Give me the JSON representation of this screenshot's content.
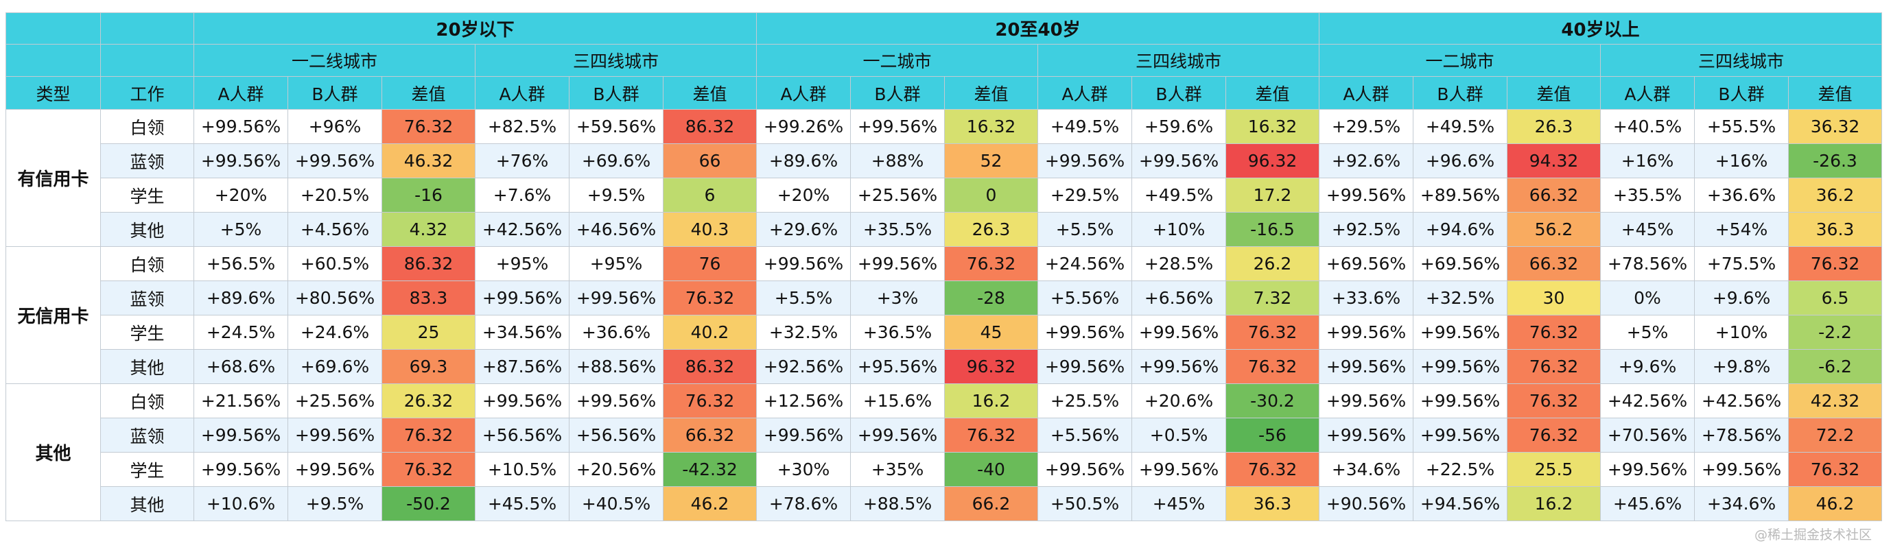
{
  "header": {
    "age_groups": [
      "20岁以下",
      "20至40岁",
      "40岁以上"
    ],
    "city_tiers": [
      "一二线城市",
      "三四线城市",
      "一二城市",
      "三四线城市",
      "一二城市",
      "三四线城市"
    ],
    "type_label": "类型",
    "job_label": "工作",
    "col_labels": [
      "A人群",
      "B人群",
      "差值"
    ]
  },
  "rows": [
    {
      "type": "有信用卡",
      "job": "白领",
      "cells": [
        "+99.56%",
        "+96%",
        "76.32",
        "+82.5%",
        "+59.56%",
        "86.32",
        "+99.26%",
        "+99.56%",
        "16.32",
        "+49.5%",
        "+59.6%",
        "16.32",
        "+29.5%",
        "+49.5%",
        "26.3",
        "+40.5%",
        "+55.5%",
        "36.32"
      ]
    },
    {
      "type": "有信用卡",
      "job": "蓝领",
      "cells": [
        "+99.56%",
        "+99.56%",
        "46.32",
        "+76%",
        "+69.6%",
        "66",
        "+89.6%",
        "+88%",
        "52",
        "+99.56%",
        "+99.56%",
        "96.32",
        "+92.6%",
        "+96.6%",
        "94.32",
        "+16%",
        "+16%",
        "-26.3"
      ]
    },
    {
      "type": "有信用卡",
      "job": "学生",
      "cells": [
        "+20%",
        "+20.5%",
        "-16",
        "+7.6%",
        "+9.5%",
        "6",
        "+20%",
        "+25.56%",
        "0",
        "+29.5%",
        "+49.5%",
        "17.2",
        "+99.56%",
        "+89.56%",
        "66.32",
        "+35.5%",
        "+36.6%",
        "36.2"
      ]
    },
    {
      "type": "有信用卡",
      "job": "其他",
      "cells": [
        "+5%",
        "+4.56%",
        "4.32",
        "+42.56%",
        "+46.56%",
        "40.3",
        "+29.6%",
        "+35.5%",
        "26.3",
        "+5.5%",
        "+10%",
        "-16.5",
        "+92.5%",
        "+94.6%",
        "56.2",
        "+45%",
        "+54%",
        "36.3"
      ]
    },
    {
      "type": "无信用卡",
      "job": "白领",
      "cells": [
        "+56.5%",
        "+60.5%",
        "86.32",
        "+95%",
        "+95%",
        "76",
        "+99.56%",
        "+99.56%",
        "76.32",
        "+24.56%",
        "+28.5%",
        "26.2",
        "+69.56%",
        "+69.56%",
        "66.32",
        "+78.56%",
        "+75.5%",
        "76.32"
      ]
    },
    {
      "type": "无信用卡",
      "job": "蓝领",
      "cells": [
        "+89.6%",
        "+80.56%",
        "83.3",
        "+99.56%",
        "+99.56%",
        "76.32",
        "+5.5%",
        "+3%",
        "-28",
        "+5.56%",
        "+6.56%",
        "7.32",
        "+33.6%",
        "+32.5%",
        "30",
        "0%",
        "+9.6%",
        "6.5"
      ]
    },
    {
      "type": "无信用卡",
      "job": "学生",
      "cells": [
        "+24.5%",
        "+24.6%",
        "25",
        "+34.56%",
        "+36.6%",
        "40.2",
        "+32.5%",
        "+36.5%",
        "45",
        "+99.56%",
        "+99.56%",
        "76.32",
        "+99.56%",
        "+99.56%",
        "76.32",
        "+5%",
        "+10%",
        "-2.2"
      ]
    },
    {
      "type": "无信用卡",
      "job": "其他",
      "cells": [
        "+68.6%",
        "+69.6%",
        "69.3",
        "+87.56%",
        "+88.56%",
        "86.32",
        "+92.56%",
        "+95.56%",
        "96.32",
        "+99.56%",
        "+99.56%",
        "76.32",
        "+99.56%",
        "+99.56%",
        "76.32",
        "+9.6%",
        "+9.8%",
        "-6.2"
      ]
    },
    {
      "type": "其他",
      "job": "白领",
      "cells": [
        "+21.56%",
        "+25.56%",
        "26.32",
        "+99.56%",
        "+99.56%",
        "76.32",
        "+12.56%",
        "+15.6%",
        "16.2",
        "+25.5%",
        "+20.6%",
        "-30.2",
        "+99.56%",
        "+99.56%",
        "76.32",
        "+42.56%",
        "+42.56%",
        "42.32"
      ]
    },
    {
      "type": "其他",
      "job": "蓝领",
      "cells": [
        "+99.56%",
        "+99.56%",
        "76.32",
        "+56.56%",
        "+56.56%",
        "66.32",
        "+99.56%",
        "+99.56%",
        "76.32",
        "+5.56%",
        "+0.5%",
        "-56",
        "+99.56%",
        "+99.56%",
        "76.32",
        "+70.56%",
        "+78.56%",
        "72.2"
      ]
    },
    {
      "type": "其他",
      "job": "学生",
      "cells": [
        "+99.56%",
        "+99.56%",
        "76.32",
        "+10.5%",
        "+20.56%",
        "-42.32",
        "+30%",
        "+35%",
        "-40",
        "+99.56%",
        "+99.56%",
        "76.32",
        "+34.6%",
        "+22.5%",
        "25.5",
        "+99.56%",
        "+99.56%",
        "76.32"
      ]
    },
    {
      "type": "其他",
      "job": "其他",
      "cells": [
        "+10.6%",
        "+9.5%",
        "-50.2",
        "+45.5%",
        "+40.5%",
        "46.2",
        "+78.6%",
        "+88.5%",
        "66.2",
        "+50.5%",
        "+45%",
        "36.3",
        "+90.56%",
        "+94.56%",
        "16.2",
        "+45.6%",
        "+34.6%",
        "46.2"
      ]
    }
  ],
  "watermark": "@稀土掘金技术社区"
}
